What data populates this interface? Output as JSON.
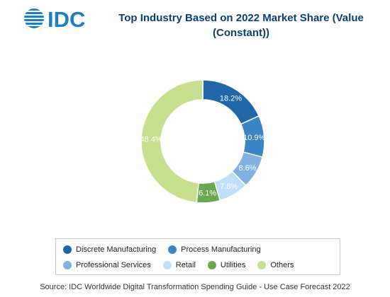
{
  "brand": {
    "name": "IDC"
  },
  "title": {
    "line1": "Top Industry Based on 2022 Market Share (Value",
    "line2": "(Constant))"
  },
  "chart_data": {
    "type": "pie",
    "variant": "donut",
    "title": "Top Industry Based on 2022 Market Share (Value (Constant))",
    "categories": [
      "Discrete Manufacturing",
      "Process Manufacturing",
      "Professional Services",
      "Retail",
      "Utilities",
      "Others"
    ],
    "values": [
      18.2,
      10.9,
      8.6,
      7.8,
      6.1,
      48.4
    ],
    "labels": [
      "18.2%",
      "10.9%",
      "8.6%",
      "7.8%",
      "6.1%",
      "48.4%"
    ],
    "colors": [
      "#1f67a8",
      "#3a85c3",
      "#7fb2e0",
      "#bde0f6",
      "#6aa84f",
      "#c8df8f"
    ],
    "start_angle_deg": 90,
    "direction": "clockwise",
    "legend": "bottom"
  },
  "legend": {
    "rows": [
      [
        {
          "label": "Discrete Manufacturing",
          "color": "#1f67a8"
        },
        {
          "label": "Process Manufacturing",
          "color": "#3a85c3"
        }
      ],
      [
        {
          "label": "Professional Services",
          "color": "#7fb2e0"
        },
        {
          "label": "Retail",
          "color": "#bde0f6"
        },
        {
          "label": "Utilities",
          "color": "#6aa84f"
        },
        {
          "label": "Others",
          "color": "#c8df8f"
        }
      ]
    ]
  },
  "source": "Source: IDC Worldwide Digital Transformation Spending Guide - Use Case Forecast 2022"
}
